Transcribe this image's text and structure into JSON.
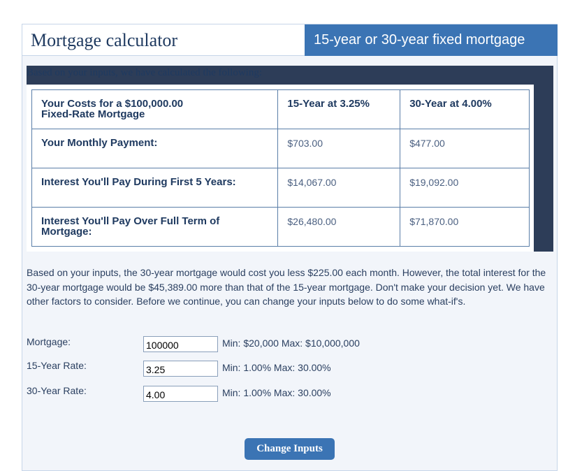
{
  "header": {
    "title": "Mortgage calculator",
    "subtitle": "15-year or 30-year fixed mortgage"
  },
  "results": {
    "intro": "Based on your inputs, we have calculated the following:",
    "table": {
      "header": {
        "label_line1": "Your Costs for a $100,000.00",
        "label_line2": "Fixed-Rate Mortgage",
        "col15": "15-Year at 3.25%",
        "col30": "30-Year at 4.00%"
      },
      "rows": [
        {
          "label_line1": "Your Monthly Payment:",
          "label_line2": "",
          "v15": "$703.00",
          "v30": "$477.00"
        },
        {
          "label_line1": "Interest You'll Pay During First 5 Years:",
          "label_line2": "",
          "v15": "$14,067.00",
          "v30": "$19,092.00"
        },
        {
          "label_line1": "Interest You'll Pay Over Full Term of",
          "label_line2": "Mortgage:",
          "v15": "$26,480.00",
          "v30": "$71,870.00"
        }
      ]
    }
  },
  "summary": "Based on your inputs, the 30-year mortgage would cost you less $225.00 each month. However, the total interest for the 30-year mortgage would be $45,389.00 more than that of the 15-year mortgage. Don't make your decision yet. We have other factors to consider. Before we continue, you can change your inputs below to do some what-if's.",
  "form": {
    "mortgage": {
      "label": "Mortgage:",
      "value": "100000",
      "hint": "Min: $20,000 Max: $10,000,000"
    },
    "rate15": {
      "label": "15-Year Rate:",
      "value": "3.25",
      "hint": "Min: 1.00% Max: 30.00%"
    },
    "rate30": {
      "label": "30-Year Rate:",
      "value": "4.00",
      "hint": "Min: 1.00% Max: 30.00%"
    },
    "button": "Change Inputs"
  }
}
